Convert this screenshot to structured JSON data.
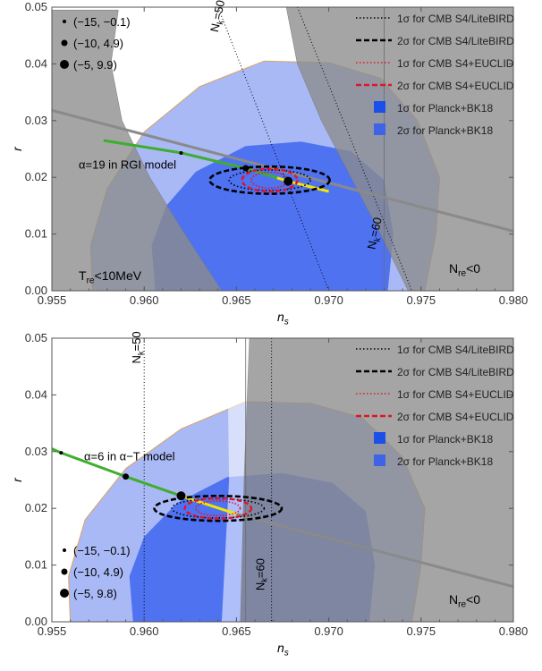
{
  "chart_data": [
    {
      "type": "line",
      "model_label": "α=19 in RGI model",
      "xlabel": "n_s",
      "ylabel": "r",
      "xlim": [
        0.955,
        0.98
      ],
      "ylim": [
        0,
        0.05
      ],
      "xticks": [
        "0.955",
        "0.960",
        "0.965",
        "0.970",
        "0.975",
        "0.980"
      ],
      "yticks": [
        "0.00",
        "0.01",
        "0.02",
        "0.03",
        "0.04",
        "0.05"
      ],
      "legend": [
        {
          "label": "1σ for CMB S4/LiteBIRD",
          "style": "dotted",
          "color": "#000000"
        },
        {
          "label": "2σ for CMB S4/LiteBIRD",
          "style": "dashed",
          "color": "#000000"
        },
        {
          "label": "1σ for CMB S4+EUCLID",
          "style": "dotted",
          "color": "#e0142a"
        },
        {
          "label": "2σ for CMB S4+EUCLID",
          "style": "dashed",
          "color": "#e0142a"
        },
        {
          "label": "1σ for Planck+BK18",
          "style": "box",
          "color": "#1a4fe8"
        },
        {
          "label": "2σ for Planck+BK18",
          "style": "box",
          "color": "#3f63e6"
        }
      ],
      "point_legend": [
        {
          "label": "(−15, −0.1)",
          "size": 2
        },
        {
          "label": "(−10, 4.9)",
          "size": 3.5
        },
        {
          "label": "(−5, 9.9)",
          "size": 5
        }
      ],
      "region_labels": {
        "left": "T_re<10MeV",
        "right": "N_re<0"
      },
      "nk_labels": [
        {
          "text": "N_k=50",
          "x": 0.964,
          "y": 0.0455
        },
        {
          "text": "N_k=60",
          "x": 0.9725,
          "y": 0.0072
        }
      ],
      "prediction_line": {
        "x": [
          0.9578,
          0.962,
          0.9655,
          0.9678,
          0.97
        ],
        "y": [
          0.0265,
          0.0243,
          0.0216,
          0.0193,
          0.0175
        ]
      },
      "highlight_points": [
        {
          "x": 0.962,
          "y": 0.0243,
          "size": 2
        },
        {
          "x": 0.9655,
          "y": 0.0216,
          "size": 3.5
        },
        {
          "x": 0.9678,
          "y": 0.0193,
          "size": 5
        }
      ]
    },
    {
      "type": "line",
      "model_label": "α=6 in α−T model",
      "xlabel": "n_s",
      "ylabel": "r",
      "xlim": [
        0.955,
        0.98
      ],
      "ylim": [
        0,
        0.05
      ],
      "xticks": [
        "0.955",
        "0.960",
        "0.965",
        "0.970",
        "0.975",
        "0.980"
      ],
      "yticks": [
        "0.00",
        "0.01",
        "0.02",
        "0.03",
        "0.04",
        "0.05"
      ],
      "legend": [
        {
          "label": "1σ for CMB S4/LiteBIRD",
          "style": "dotted",
          "color": "#000000"
        },
        {
          "label": "2σ for CMB S4/LiteBIRD",
          "style": "dashed",
          "color": "#000000"
        },
        {
          "label": "1σ for CMB S4+EUCLID",
          "style": "dotted",
          "color": "#e0142a"
        },
        {
          "label": "2σ for CMB S4+EUCLID",
          "style": "dashed",
          "color": "#e0142a"
        },
        {
          "label": "1σ for Planck+BK18",
          "style": "box",
          "color": "#1a4fe8"
        },
        {
          "label": "2σ for Planck+BK18",
          "style": "box",
          "color": "#3f63e6"
        }
      ],
      "point_legend": [
        {
          "label": "(−15, −0.1)",
          "size": 2
        },
        {
          "label": "(−10, 4.9)",
          "size": 3.5
        },
        {
          "label": "(−5, 9.8)",
          "size": 5
        }
      ],
      "region_labels": {
        "left": "",
        "right": "N_re<0"
      },
      "nk_labels": [
        {
          "text": "N_k=50",
          "x": 0.9598,
          "y": 0.0455
        },
        {
          "text": "N_k=60",
          "x": 0.9665,
          "y": 0.0055
        }
      ],
      "prediction_line": {
        "x": [
          0.955,
          0.9555,
          0.959,
          0.962,
          0.965
        ],
        "y": [
          0.0305,
          0.0298,
          0.0256,
          0.0222,
          0.019
        ]
      },
      "highlight_points": [
        {
          "x": 0.9555,
          "y": 0.0298,
          "size": 2
        },
        {
          "x": 0.959,
          "y": 0.0256,
          "size": 3.5
        },
        {
          "x": 0.962,
          "y": 0.0222,
          "size": 5
        }
      ]
    }
  ]
}
